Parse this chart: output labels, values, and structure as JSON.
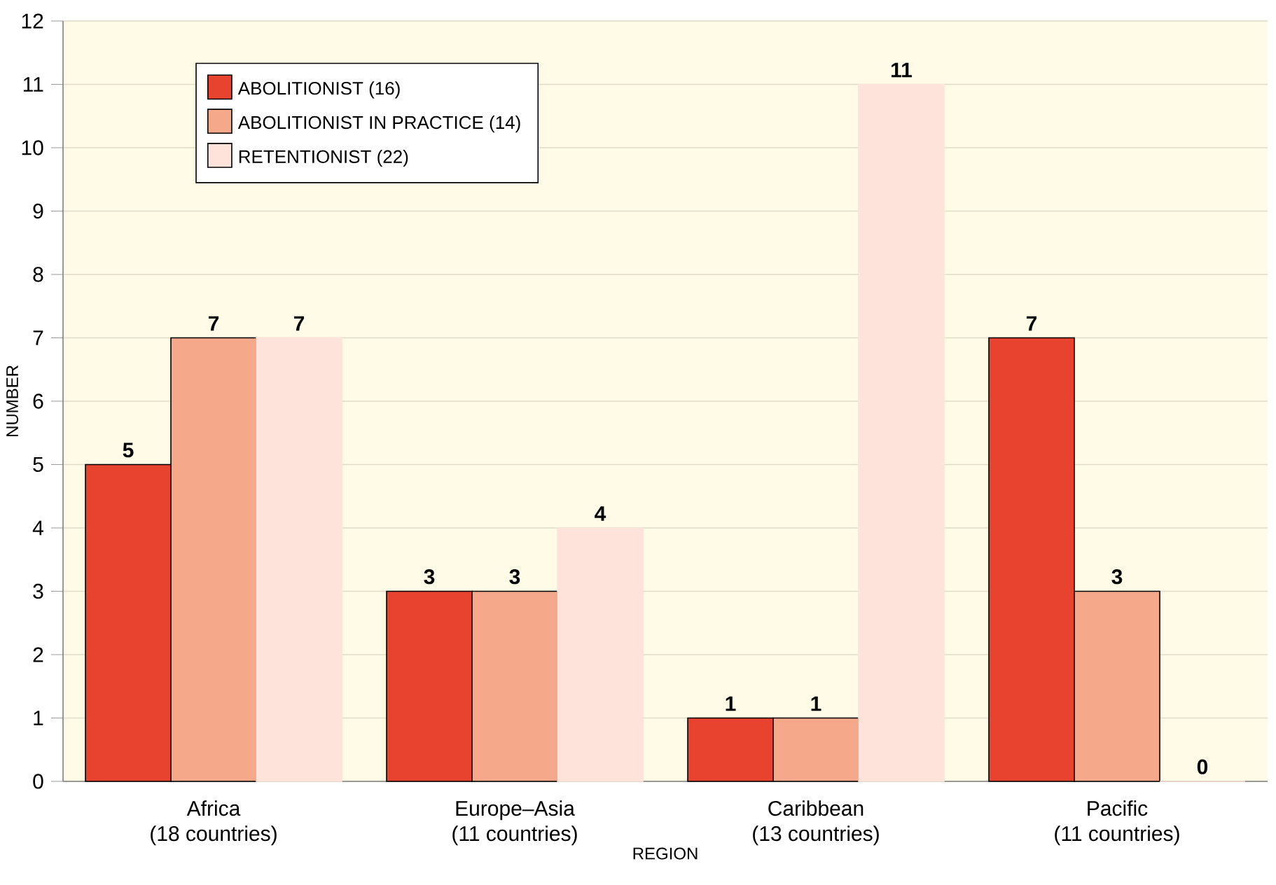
{
  "chart_data": {
    "type": "bar",
    "xlabel": "REGION",
    "ylabel": "NUMBER",
    "categories": [
      "Africa\n(18 countries)",
      "Europe–Asia\n(11 countries)",
      "Caribbean\n(13 countries)",
      "Pacific\n(11 countries)"
    ],
    "series": [
      {
        "name": "ABOLITIONIST (16)",
        "color": "#e8432f",
        "values": [
          5,
          3,
          1,
          7
        ]
      },
      {
        "name": "ABOLITIONIST IN PRACTICE (14)",
        "color": "#f5a98a",
        "values": [
          7,
          3,
          1,
          3
        ]
      },
      {
        "name": "RETENTIONIST (22)",
        "color": "#fde3d9",
        "values": [
          7,
          4,
          11,
          0
        ]
      }
    ],
    "ylim": [
      0,
      12
    ],
    "yticks": [
      0,
      1,
      2,
      3,
      4,
      5,
      6,
      7,
      8,
      9,
      10,
      11,
      12
    ],
    "grid": "y",
    "legend": "top left",
    "data_labels": true
  }
}
